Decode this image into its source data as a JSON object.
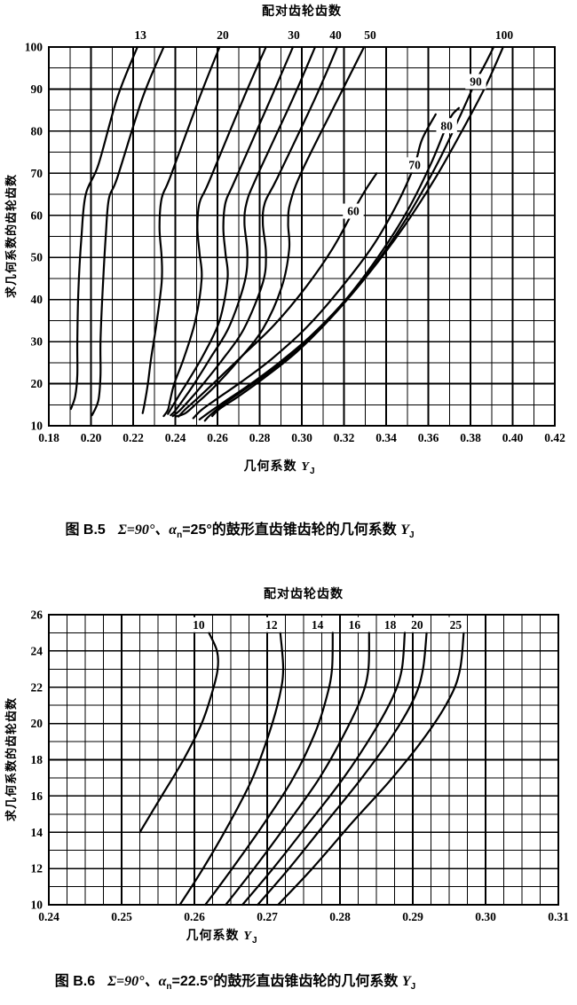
{
  "figures": [
    {
      "param_title": "配对齿轮齿数",
      "ylabel": "求几何系数的齿轮齿数",
      "xlabel": {
        "text": "几何系数",
        "sym": "Y",
        "sub": "J"
      },
      "caption": {
        "fig": "图 B.5",
        "b1": "Σ=90°、α",
        "s1": "n",
        "b2": "=25°的鼓形直齿锥齿轮的几何系数",
        "sym": "Y",
        "s2": "J"
      }
    },
    {
      "param_title": "配对齿轮齿数",
      "ylabel": "求几何系数的齿轮齿数",
      "xlabel": {
        "text": "几何系数",
        "sym": "Y",
        "sub": "J"
      },
      "caption": {
        "fig": "图 B.6",
        "b1": "Σ=90°、α",
        "s1": "n",
        "b2": "=22.5°的鼓形直齿锥齿轮的几何系数",
        "sym": "Y",
        "s2": "J"
      }
    }
  ],
  "colors": {
    "ink": "#000000",
    "paper": "#ffffff"
  },
  "chart_data": [
    {
      "type": "line",
      "title": "配对齿轮齿数",
      "xlabel": "几何系数 YJ",
      "ylabel": "求几何系数的齿轮齿数",
      "grid": true,
      "legend_position": "curve-parameter labels on/above curves",
      "x_axis": {
        "min": 0.18,
        "max": 0.42,
        "minor_step": 0.01,
        "major_step": 0.02,
        "tick_labels": [
          "0.18",
          "0.20",
          "0.22",
          "0.24",
          "0.26",
          "0.28",
          "0.30",
          "0.32",
          "0.34",
          "0.36",
          "0.38",
          "0.40",
          "0.42"
        ]
      },
      "y_axis": {
        "min": 10,
        "max": 100,
        "minor_step": 5,
        "major_step": 10,
        "tick_labels": [
          "10",
          "20",
          "30",
          "40",
          "50",
          "60",
          "70",
          "80",
          "90",
          "100"
        ]
      },
      "series": [
        {
          "name": "13",
          "label_above_x": 0.2234,
          "points": [
            [
              0.222,
              100
            ],
            [
              0.2125,
              88
            ],
            [
              0.2035,
              72
            ],
            [
              0.1975,
              65
            ],
            [
              0.1955,
              55
            ],
            [
              0.194,
              42
            ],
            [
              0.1935,
              30
            ],
            [
              0.1935,
              22
            ],
            [
              0.1925,
              17
            ],
            [
              0.1905,
              14
            ]
          ]
        },
        {
          "name": "",
          "points": [
            [
              0.2345,
              100
            ],
            [
              0.2245,
              88
            ],
            [
              0.2125,
              69
            ],
            [
              0.2085,
              64
            ],
            [
              0.207,
              55
            ],
            [
              0.2055,
              42
            ],
            [
              0.2045,
              30
            ],
            [
              0.2045,
              22
            ],
            [
              0.2035,
              16
            ],
            [
              0.2005,
              12.5
            ]
          ]
        },
        {
          "name": "20",
          "label_above_x": 0.2625,
          "points": [
            [
              0.261,
              100
            ],
            [
              0.2515,
              88
            ],
            [
              0.2375,
              69
            ],
            [
              0.2335,
              64
            ],
            [
              0.2325,
              57
            ],
            [
              0.2335,
              50
            ],
            [
              0.2335,
              44
            ],
            [
              0.231,
              34
            ],
            [
              0.2285,
              26
            ],
            [
              0.227,
              20
            ],
            [
              0.2255,
              15.5
            ],
            [
              0.2245,
              13
            ]
          ]
        },
        {
          "name": "",
          "points": [
            [
              0.283,
              100
            ],
            [
              0.2725,
              88
            ],
            [
              0.256,
              68
            ],
            [
              0.2515,
              63
            ],
            [
              0.2505,
              57
            ],
            [
              0.2515,
              51
            ],
            [
              0.2525,
              45
            ],
            [
              0.2495,
              35
            ],
            [
              0.244,
              26
            ],
            [
              0.2395,
              20
            ],
            [
              0.2375,
              16
            ],
            [
              0.2365,
              13.8
            ],
            [
              0.2345,
              12.3
            ]
          ]
        },
        {
          "name": "30",
          "label_above_x": 0.2962,
          "points": [
            [
              0.2958,
              100
            ],
            [
              0.2855,
              88
            ],
            [
              0.268,
              68
            ],
            [
              0.2638,
              63
            ],
            [
              0.2628,
              57
            ],
            [
              0.2638,
              51
            ],
            [
              0.2648,
              45
            ],
            [
              0.261,
              35
            ],
            [
              0.2535,
              27
            ],
            [
              0.2465,
              21
            ],
            [
              0.2415,
              17
            ],
            [
              0.2385,
              14.5
            ],
            [
              0.2365,
              12.8
            ]
          ]
        },
        {
          "name": "",
          "points": [
            [
              0.3063,
              100
            ],
            [
              0.296,
              88
            ],
            [
              0.2785,
              69
            ],
            [
              0.2738,
              63
            ],
            [
              0.2728,
              58
            ],
            [
              0.2742,
              51
            ],
            [
              0.2728,
              44
            ],
            [
              0.2655,
              33.5
            ],
            [
              0.2565,
              26
            ],
            [
              0.249,
              20
            ],
            [
              0.2435,
              16
            ],
            [
              0.2398,
              13.5
            ],
            [
              0.2378,
              12.5
            ]
          ]
        },
        {
          "name": "40",
          "label_above_x": 0.316,
          "points": [
            [
              0.3168,
              100
            ],
            [
              0.3065,
              88
            ],
            [
              0.2885,
              69
            ],
            [
              0.2825,
              63
            ],
            [
              0.2815,
              58
            ],
            [
              0.283,
              51
            ],
            [
              0.2815,
              44
            ],
            [
              0.2725,
              33
            ],
            [
              0.262,
              25.5
            ],
            [
              0.2525,
              19.5
            ],
            [
              0.2465,
              16
            ],
            [
              0.2418,
              13.5
            ],
            [
              0.2388,
              12.3
            ]
          ]
        },
        {
          "name": "50",
          "label_above_x": 0.3324,
          "points": [
            [
              0.3295,
              100
            ],
            [
              0.3195,
              90
            ],
            [
              0.3005,
              71
            ],
            [
              0.2945,
              63
            ],
            [
              0.2935,
              58
            ],
            [
              0.294,
              52
            ],
            [
              0.2905,
              43
            ],
            [
              0.2815,
              33
            ],
            [
              0.269,
              25
            ],
            [
              0.258,
              19
            ],
            [
              0.2505,
              15.5
            ],
            [
              0.2448,
              13
            ],
            [
              0.2402,
              12.2
            ]
          ]
        },
        {
          "name": "60",
          "label_at": [
            0.3244,
            61
          ],
          "points": [
            [
              0.3355,
              70
            ],
            [
              0.3302,
              66
            ],
            [
              0.3244,
              61
            ],
            [
              0.3145,
              52
            ],
            [
              0.302,
              43
            ],
            [
              0.287,
              34
            ],
            [
              0.2715,
              26.5
            ],
            [
              0.259,
              20.5
            ],
            [
              0.2505,
              16.5
            ],
            [
              0.2445,
              13.8
            ],
            [
              0.2415,
              12.2
            ]
          ]
        },
        {
          "name": "70",
          "label_at": [
            0.3535,
            72
          ],
          "points": [
            [
              0.3635,
              84
            ],
            [
              0.357,
              78
            ],
            [
              0.3535,
              72
            ],
            [
              0.3455,
              63
            ],
            [
              0.334,
              53
            ],
            [
              0.319,
              43
            ],
            [
              0.3025,
              33.5
            ],
            [
              0.286,
              26
            ],
            [
              0.2715,
              20.5
            ],
            [
              0.26,
              16.5
            ],
            [
              0.2525,
              13.8
            ],
            [
              0.2485,
              11.8
            ]
          ]
        },
        {
          "name": "80",
          "label_at": [
            0.3687,
            81.3
          ],
          "points": [
            [
              0.3745,
              85.5
            ],
            [
              0.3715,
              84
            ],
            [
              0.3687,
              81.3
            ],
            [
              0.361,
              72
            ],
            [
              0.35,
              61
            ],
            [
              0.336,
              50
            ],
            [
              0.32,
              39.5
            ],
            [
              0.3035,
              31
            ],
            [
              0.288,
              24.5
            ],
            [
              0.2745,
              19.5
            ],
            [
              0.2635,
              15.8
            ],
            [
              0.2555,
              13
            ],
            [
              0.2515,
              11.5
            ]
          ]
        },
        {
          "name": "90",
          "label_at": [
            0.3825,
            91.8
          ],
          "points": [
            [
              0.391,
              100
            ],
            [
              0.3865,
              95.5
            ],
            [
              0.3825,
              91.8
            ],
            [
              0.3745,
              83
            ],
            [
              0.364,
              72
            ],
            [
              0.3505,
              60
            ],
            [
              0.335,
              48.5
            ],
            [
              0.3185,
              38.5
            ],
            [
              0.302,
              30
            ],
            [
              0.2865,
              23.5
            ],
            [
              0.2725,
              18.5
            ],
            [
              0.2625,
              15
            ],
            [
              0.2565,
              12.5
            ],
            [
              0.254,
              11.2
            ]
          ]
        },
        {
          "name": "100",
          "label_above_x": 0.396,
          "points": [
            [
              0.3955,
              100
            ],
            [
              0.3875,
              91
            ],
            [
              0.377,
              81
            ],
            [
              0.3635,
              69
            ],
            [
              0.348,
              57
            ],
            [
              0.3315,
              46
            ],
            [
              0.3145,
              36
            ],
            [
              0.2975,
              27.5
            ],
            [
              0.2825,
              21.5
            ],
            [
              0.27,
              17
            ],
            [
              0.261,
              14
            ],
            [
              0.2575,
              12.3
            ]
          ]
        }
      ]
    },
    {
      "type": "line",
      "title": "配对齿轮齿数",
      "xlabel": "几何系数 YJ",
      "ylabel": "求几何系数的齿轮齿数",
      "grid": true,
      "legend_position": "curve-parameter labels boxed inside top of plot",
      "x_axis": {
        "min": 0.24,
        "max": 0.31,
        "minor_step": 0.0025,
        "major_step": 0.01,
        "tick_labels": [
          "0.24",
          "0.25",
          "0.26",
          "0.27",
          "0.28",
          "0.29",
          "0.30",
          "0.31"
        ]
      },
      "y_axis": {
        "min": 10,
        "max": 26,
        "minor_step": 1,
        "major_step": 2,
        "tick_labels": [
          "10",
          "12",
          "14",
          "16",
          "18",
          "20",
          "22",
          "24",
          "26"
        ]
      },
      "series": [
        {
          "name": "10",
          "label_at": [
            0.2606,
            25.45
          ],
          "points": [
            [
              0.2525,
              14
            ],
            [
              0.2555,
              16
            ],
            [
              0.2585,
              18
            ],
            [
              0.261,
              20
            ],
            [
              0.2625,
              21.8
            ],
            [
              0.2632,
              23
            ],
            [
              0.2631,
              24
            ],
            [
              0.262,
              25
            ]
          ]
        },
        {
          "name": "12",
          "label_at": [
            0.2706,
            25.45
          ],
          "points": [
            [
              0.258,
              10
            ],
            [
              0.2612,
              12
            ],
            [
              0.2648,
              14.5
            ],
            [
              0.268,
              17
            ],
            [
              0.2703,
              19.5
            ],
            [
              0.2717,
              21.5
            ],
            [
              0.2722,
              23
            ],
            [
              0.2718,
              25
            ]
          ]
        },
        {
          "name": "14",
          "label_at": [
            0.2769,
            25.45
          ],
          "points": [
            [
              0.2615,
              10
            ],
            [
              0.2652,
              12
            ],
            [
              0.2696,
              14.5
            ],
            [
              0.2736,
              17
            ],
            [
              0.2766,
              19.5
            ],
            [
              0.2782,
              21.5
            ],
            [
              0.2789,
              23
            ],
            [
              0.279,
              25
            ]
          ]
        },
        {
          "name": "16",
          "label_at": [
            0.282,
            25.45
          ],
          "points": [
            [
              0.2643,
              10
            ],
            [
              0.2682,
              12
            ],
            [
              0.2728,
              14.5
            ],
            [
              0.2772,
              17
            ],
            [
              0.2807,
              19.5
            ],
            [
              0.283,
              21.5
            ],
            [
              0.2839,
              23
            ],
            [
              0.284,
              25
            ]
          ]
        },
        {
          "name": "18",
          "label_at": [
            0.2869,
            25.45
          ],
          "points": [
            [
              0.2666,
              10
            ],
            [
              0.2708,
              12
            ],
            [
              0.2757,
              14.5
            ],
            [
              0.2805,
              17
            ],
            [
              0.2846,
              19.5
            ],
            [
              0.2873,
              21.5
            ],
            [
              0.2885,
              23
            ],
            [
              0.2889,
              25
            ]
          ]
        },
        {
          "name": "20",
          "label_at": [
            0.2906,
            25.45
          ],
          "points": [
            [
              0.2687,
              10
            ],
            [
              0.273,
              12
            ],
            [
              0.278,
              14.5
            ],
            [
              0.283,
              17
            ],
            [
              0.2875,
              19.5
            ],
            [
              0.2903,
              21.5
            ],
            [
              0.2914,
              23
            ],
            [
              0.2919,
              25
            ]
          ]
        },
        {
          "name": "25",
          "label_at": [
            0.2959,
            25.45
          ],
          "points": [
            [
              0.2715,
              10
            ],
            [
              0.2762,
              12
            ],
            [
              0.2816,
              14.5
            ],
            [
              0.2872,
              17
            ],
            [
              0.2921,
              19.5
            ],
            [
              0.2952,
              21.5
            ],
            [
              0.2965,
              23
            ],
            [
              0.297,
              25
            ]
          ]
        }
      ]
    }
  ]
}
